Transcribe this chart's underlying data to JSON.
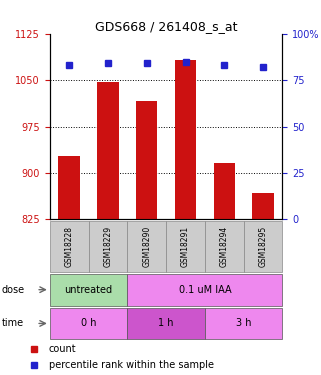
{
  "title": "GDS668 / 261408_s_at",
  "samples": [
    "GSM18228",
    "GSM18229",
    "GSM18290",
    "GSM18291",
    "GSM18294",
    "GSM18295"
  ],
  "bar_values": [
    928,
    1047,
    1017,
    1082,
    916,
    868
  ],
  "dot_values": [
    83,
    84,
    84,
    85,
    83,
    82
  ],
  "ylim_left": [
    825,
    1125
  ],
  "ylim_right": [
    0,
    100
  ],
  "yticks_left": [
    825,
    900,
    975,
    1050,
    1125
  ],
  "yticks_right": [
    0,
    25,
    50,
    75,
    100
  ],
  "bar_color": "#cc1111",
  "dot_color": "#2222cc",
  "grid_values": [
    900,
    975,
    1050
  ],
  "dose_labels": [
    {
      "text": "untreated",
      "span": [
        0,
        2
      ],
      "color": "#aaddaa"
    },
    {
      "text": "0.1 uM IAA",
      "span": [
        2,
        6
      ],
      "color": "#ee88ee"
    }
  ],
  "time_labels": [
    {
      "text": "0 h",
      "span": [
        0,
        2
      ],
      "color": "#ee88ee"
    },
    {
      "text": "1 h",
      "span": [
        2,
        4
      ],
      "color": "#cc55cc"
    },
    {
      "text": "3 h",
      "span": [
        4,
        6
      ],
      "color": "#ee88ee"
    }
  ],
  "legend_count_color": "#cc1111",
  "legend_dot_color": "#2222cc",
  "left_tick_color": "#cc1111",
  "right_tick_color": "#2222cc"
}
